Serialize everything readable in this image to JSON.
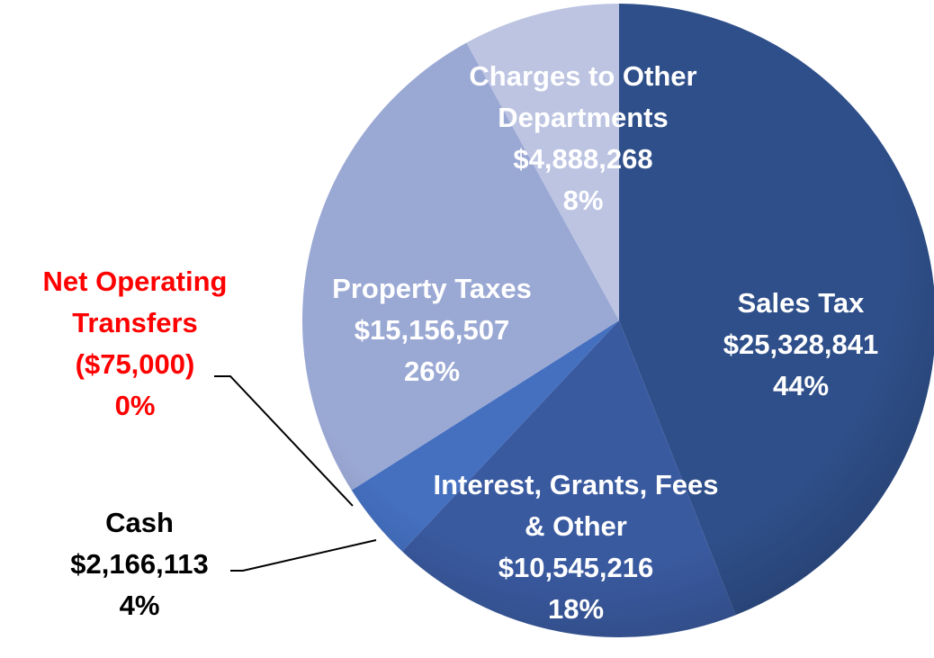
{
  "chart_data": {
    "type": "pie",
    "categories": [
      "Sales Tax",
      "Interest, Grants, Fees & Other",
      "Cash",
      "Net Operating Transfers",
      "Property Taxes",
      "Charges to Other Departments"
    ],
    "values": [
      44,
      18,
      4,
      0,
      26,
      8
    ],
    "value_labels": [
      "44%",
      "18%",
      "4%",
      "0%",
      "26%",
      "8%"
    ],
    "amounts": [
      25328841,
      10545216,
      2166113,
      -75000,
      15156507,
      4888268
    ],
    "amount_labels": [
      "$25,328,841",
      "$10,545,216",
      "$2,166,113",
      "($75,000)",
      "$15,156,507",
      "$4,888,268"
    ],
    "colors": [
      "#2f4f8a",
      "#3a5aa0",
      "#4570c0",
      "#4a6fb8",
      "#9aa8d4",
      "#bcc4e2"
    ],
    "label_colors": [
      "#ffffff",
      "#ffffff",
      "#000000",
      "#ff0000",
      "#ffffff",
      "#ffffff"
    ]
  }
}
